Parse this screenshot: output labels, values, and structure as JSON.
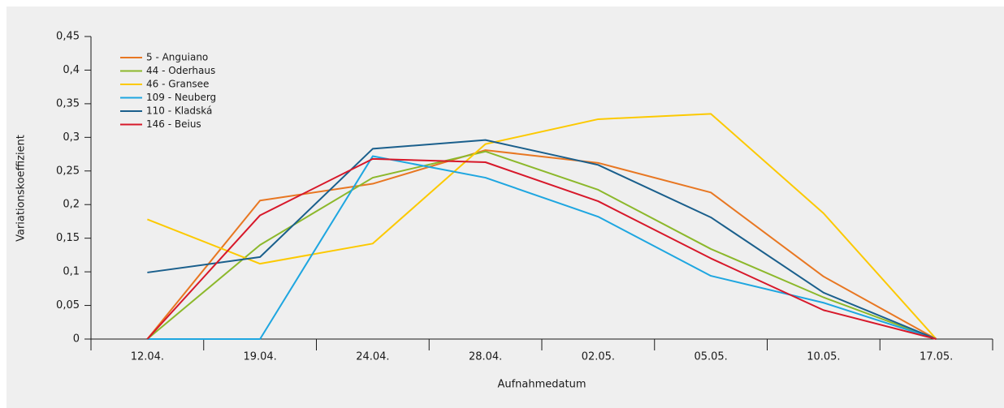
{
  "chart_data": {
    "type": "line",
    "x_label": "Aufnahmedatum",
    "y_label": "Variationskoeffizient",
    "categories": [
      "12.04.",
      "19.04.",
      "24.04.",
      "28.04.",
      "02.05.",
      "05.05.",
      "10.05.",
      "17.05."
    ],
    "series": [
      {
        "name": "5 - Anguiano",
        "color": "#e87722",
        "values": [
          0,
          0.206,
          0.231,
          0.281,
          0.262,
          0.218,
          0.093,
          0
        ]
      },
      {
        "name": "44 - Oderhaus",
        "color": "#8cb82b",
        "values": [
          0,
          0.14,
          0.24,
          0.279,
          0.222,
          0.134,
          0.062,
          0
        ]
      },
      {
        "name": "46 - Gransee",
        "color": "#fcc900",
        "values": [
          0.178,
          0.112,
          0.142,
          0.29,
          0.327,
          0.335,
          0.187,
          0
        ]
      },
      {
        "name": "109 - Neuberg",
        "color": "#1ea6e0",
        "values": [
          0,
          0,
          0.272,
          0.24,
          0.182,
          0.094,
          0.054,
          0
        ]
      },
      {
        "name": "110 - Kladská",
        "color": "#1a5f8c",
        "values": [
          0.099,
          0.122,
          0.283,
          0.296,
          0.259,
          0.181,
          0.069,
          0
        ]
      },
      {
        "name": "146 - Beius",
        "color": "#d7182a",
        "values": [
          0,
          0.184,
          0.268,
          0.263,
          0.205,
          0.12,
          0.043,
          0
        ]
      }
    ],
    "ylim": [
      0,
      0.45
    ],
    "yticks": [
      0,
      {
        "value": 0.05,
        "label": "0,05"
      },
      {
        "value": 0.1,
        "label": "0,1"
      },
      {
        "value": 0.15,
        "label": "0,15"
      },
      {
        "value": 0.2,
        "label": "0,2"
      },
      {
        "value": 0.25,
        "label": "0,25"
      },
      {
        "value": 0.3,
        "label": "0,3"
      },
      {
        "value": 0.35,
        "label": "0,35"
      },
      {
        "value": 0.4,
        "label": "0,4"
      },
      {
        "value": 0.45,
        "label": "0,45"
      }
    ],
    "grid": false,
    "legend_position": "upper left"
  }
}
